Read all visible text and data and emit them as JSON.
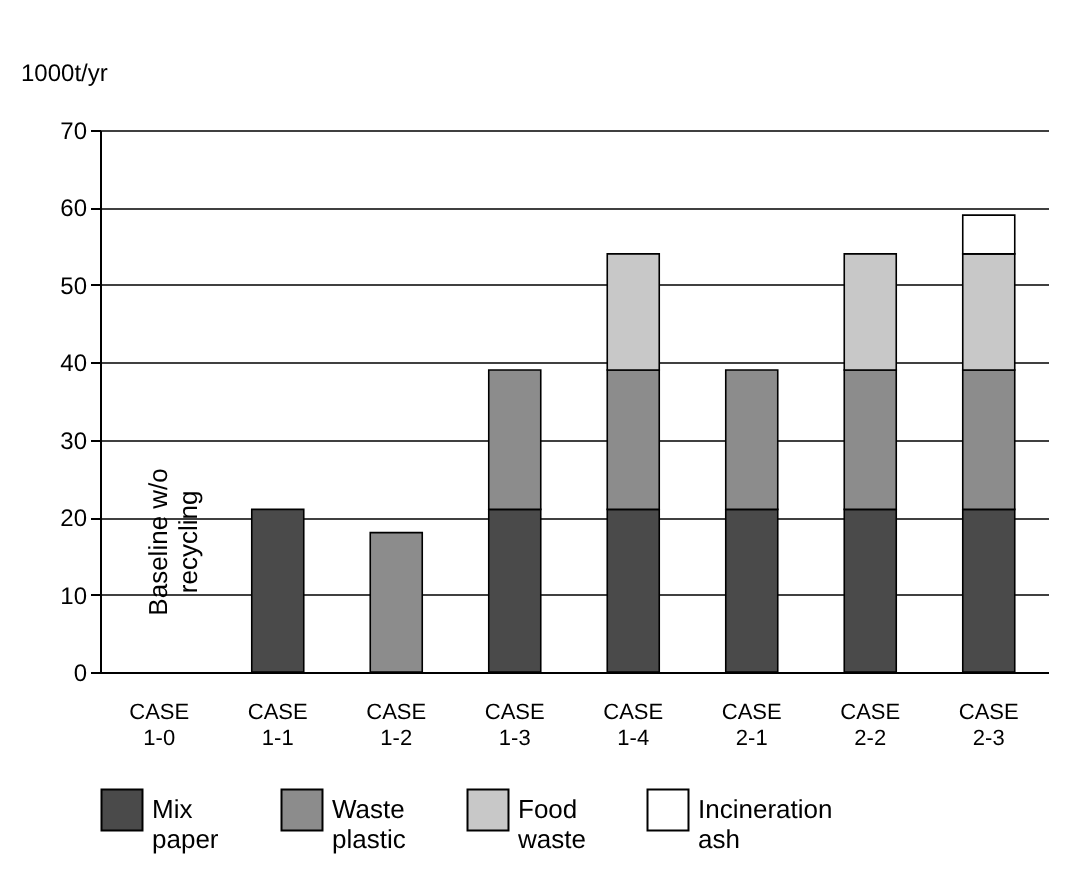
{
  "chart_data": {
    "type": "bar",
    "stacked": true,
    "ylabel": "1000t/yr",
    "categories": [
      "CASE 1-0",
      "CASE 1-1",
      "CASE 1-2",
      "CASE 1-3",
      "CASE 1-4",
      "CASE 2-1",
      "CASE 2-2",
      "CASE 2-3"
    ],
    "series": [
      {
        "name": "Mix paper",
        "color": "#4a4a4a",
        "values": [
          null,
          21,
          null,
          21,
          21,
          21,
          21,
          21
        ]
      },
      {
        "name": "Waste plastic",
        "color": "#8c8c8c",
        "values": [
          null,
          null,
          18,
          18,
          18,
          18,
          18,
          18
        ]
      },
      {
        "name": "Food waste",
        "color": "#c8c8c8",
        "values": [
          null,
          null,
          null,
          null,
          15,
          null,
          15,
          15
        ]
      },
      {
        "name": "Incineration ash",
        "color": "#ffffff",
        "values": [
          null,
          null,
          null,
          null,
          null,
          null,
          null,
          5
        ]
      }
    ],
    "ylim": [
      0,
      70
    ],
    "yticks": [
      0,
      10,
      20,
      30,
      40,
      50,
      60,
      70
    ],
    "grid": "y",
    "legend": "bottom",
    "annotations": [
      "Baseline w/o recycling"
    ]
  }
}
